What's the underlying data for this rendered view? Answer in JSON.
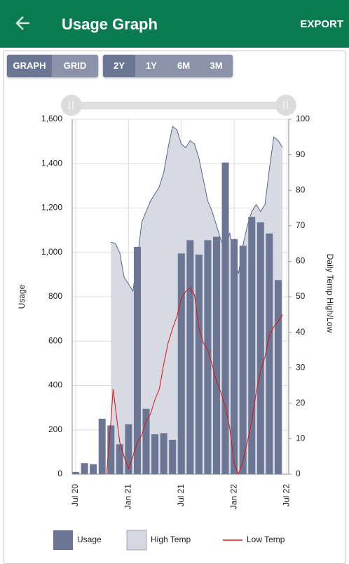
{
  "header": {
    "title": "Usage Graph",
    "action": "EXPORT"
  },
  "controls": {
    "view": [
      "GRAPH",
      "GRID"
    ],
    "range": [
      "2Y",
      "1Y",
      "6M",
      "3M"
    ]
  },
  "chart_data": {
    "type": "bar",
    "ylabel": "Usage",
    "y2label": "Daily Temp High/Low",
    "xlim": [
      -0.4,
      24.2
    ],
    "xticks": [
      {
        "value": 0,
        "label": "Jul 20"
      },
      {
        "value": 6,
        "label": "Jan 21"
      },
      {
        "value": 12,
        "label": "Jul 21"
      },
      {
        "value": 18,
        "label": "Jan 22"
      },
      {
        "value": 24,
        "label": "Jul 22"
      }
    ],
    "ylim": [
      0,
      1600
    ],
    "yticks": [
      0,
      {
        "value": 200,
        "label": "200"
      },
      400,
      600,
      800,
      {
        "value": 1000,
        "label": "1,000"
      },
      {
        "value": 1200,
        "label": "1,200"
      },
      {
        "value": 1400,
        "label": "1,400"
      },
      {
        "value": 1600,
        "label": "1,600"
      }
    ],
    "y2lim": [
      0,
      100
    ],
    "y2ticks": [
      0,
      10,
      20,
      30,
      40,
      50,
      60,
      70,
      80,
      90,
      100
    ],
    "grid": true,
    "series": [
      {
        "name": "Usage",
        "type": "bar",
        "color": "#6b7694",
        "x": [
          0,
          1,
          2,
          3,
          4,
          5,
          6,
          7,
          8,
          9,
          10,
          11,
          12,
          13,
          14,
          15,
          16,
          17,
          18,
          19,
          20,
          21,
          22,
          23
        ],
        "values": [
          10,
          50,
          45,
          250,
          220,
          135,
          225,
          1025,
          295,
          180,
          185,
          155,
          995,
          1055,
          990,
          1055,
          1070,
          1405,
          1060,
          1030,
          1160,
          1135,
          1085,
          875
        ]
      },
      {
        "name": "High Temp",
        "type": "area",
        "axis": "y2",
        "color": "#d5d8e0",
        "x": [
          4,
          4.5,
          5,
          5.5,
          6,
          6.5,
          7,
          7.5,
          8,
          8.5,
          9,
          9.5,
          10,
          10.5,
          11,
          11.5,
          12,
          12.5,
          13,
          13.5,
          14,
          14.5,
          15,
          15.5,
          16,
          16.5,
          17,
          17.5,
          18,
          18.5,
          19,
          19.5,
          20,
          20.5,
          21,
          21.5,
          22,
          22.5,
          23,
          23.5
        ],
        "values": [
          65.4,
          65,
          62.5,
          55.5,
          53.6,
          51.6,
          60.5,
          71,
          74,
          77,
          79,
          81,
          85,
          92,
          98,
          97,
          93,
          92,
          94,
          93,
          89,
          83,
          77,
          74,
          70,
          66,
          63,
          68,
          60.5,
          56.5,
          64.5,
          70,
          74,
          76,
          74,
          76,
          86,
          95,
          94,
          92
        ]
      },
      {
        "name": "Low Temp",
        "type": "line",
        "axis": "y2",
        "color": "#e01010",
        "x": [
          3.5,
          4,
          4.25,
          4.5,
          5,
          5.5,
          6,
          6.5,
          7,
          7.5,
          8,
          8.5,
          9,
          9.5,
          10,
          10.5,
          11,
          11.5,
          12,
          12.5,
          13,
          13.5,
          14,
          14.5,
          15,
          15.5,
          16,
          16.5,
          17,
          17.5,
          18,
          18.5,
          19,
          19.5,
          20,
          20.5,
          21,
          21.5,
          22,
          22.5,
          23,
          23.5
        ],
        "values": [
          0,
          15,
          24,
          19,
          9,
          5,
          1.5,
          5,
          9,
          11,
          15,
          17,
          21,
          24,
          31,
          37,
          41,
          44.5,
          49.5,
          51.5,
          52.5,
          50.5,
          41,
          37,
          35,
          31,
          26,
          23,
          19,
          13,
          3,
          0,
          4,
          9,
          15,
          23,
          29,
          33,
          39,
          41.5,
          43,
          45
        ]
      }
    ]
  }
}
